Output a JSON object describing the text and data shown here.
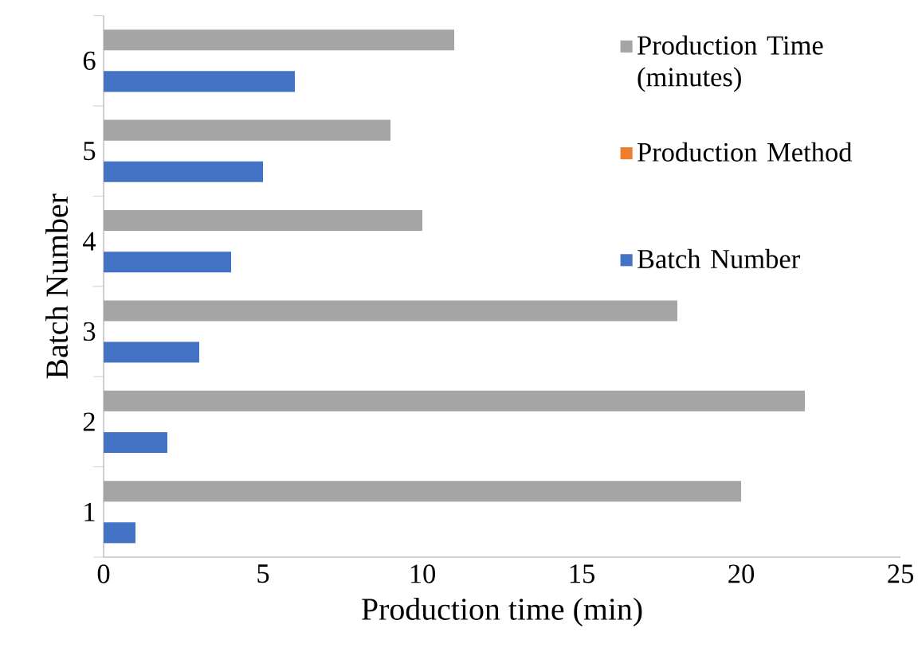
{
  "chart_data": {
    "type": "bar",
    "orientation": "horizontal",
    "xlabel": "Production time (min)",
    "ylabel": "Batch Number",
    "categories": [
      "6",
      "5",
      "4",
      "3",
      "2",
      "1"
    ],
    "series": [
      {
        "name": "Production Time (minutes)",
        "color": "#a5a5a5",
        "values": [
          11,
          9,
          10,
          18,
          22,
          20
        ]
      },
      {
        "name": "Production Method",
        "color": "#ed7d31",
        "values": [
          null,
          null,
          null,
          null,
          null,
          null
        ]
      },
      {
        "name": "Batch Number",
        "color": "#4472c4",
        "values": [
          6,
          5,
          4,
          3,
          2,
          1
        ]
      }
    ],
    "xlim": [
      0,
      25
    ],
    "xticks": [
      0,
      5,
      10,
      15,
      20,
      25
    ],
    "grid": false,
    "legend": "top right"
  }
}
